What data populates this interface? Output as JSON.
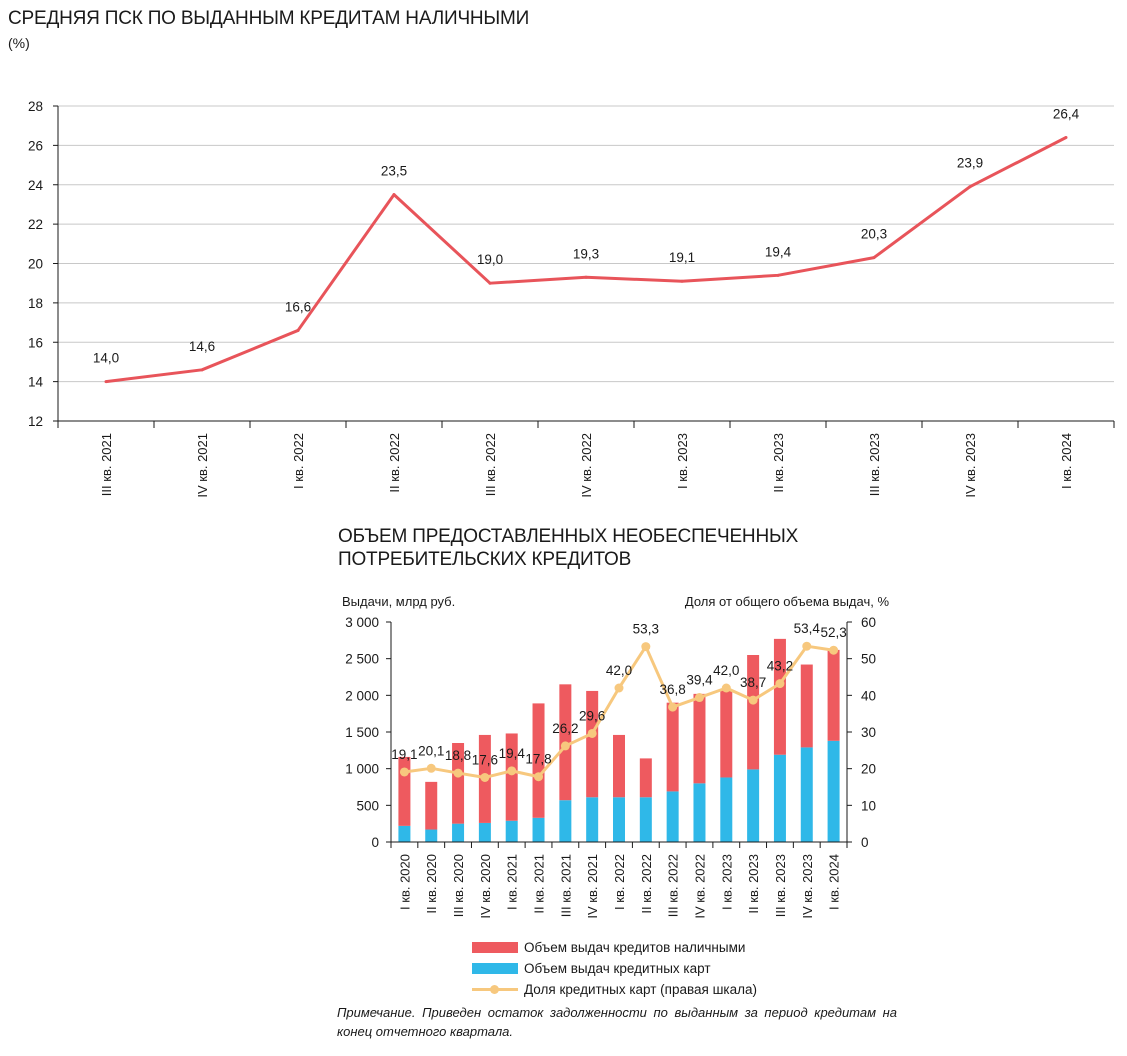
{
  "chart_data": [
    {
      "type": "line",
      "title": "СРЕДНЯЯ ПСК ПО ВЫДАННЫМ КРЕДИТАМ НАЛИЧНЫМИ",
      "unit": "(%)",
      "categories": [
        "III кв. 2021",
        "IV кв. 2021",
        "I кв. 2022",
        "II кв. 2022",
        "III кв. 2022",
        "IV кв. 2022",
        "I кв. 2023",
        "II кв. 2023",
        "III кв. 2023",
        "IV кв. 2023",
        "I кв. 2024"
      ],
      "values": [
        14.0,
        14.6,
        16.6,
        23.5,
        19.0,
        19.3,
        19.1,
        19.4,
        20.3,
        23.9,
        26.4
      ],
      "data_labels": [
        "14,0",
        "14,6",
        "16,6",
        "23,5",
        "19,0",
        "19,3",
        "19,1",
        "19,4",
        "20,3",
        "23,9",
        "26,4"
      ],
      "ylim": [
        12,
        28
      ],
      "yticks": [
        "12",
        "14",
        "16",
        "18",
        "20",
        "22",
        "24",
        "26",
        "28"
      ],
      "color": "#e8545a",
      "grid": true
    },
    {
      "type": "bar",
      "title_lines": [
        "ОБЪЕМ ПРЕДОСТАВЛЕННЫХ НЕОБЕСПЕЧЕННЫХ",
        "ПОТРЕБИТЕЛЬСКИХ КРЕДИТОВ"
      ],
      "left_axis_label": "Выдачи, млрд руб.",
      "right_axis_label": "Доля от общего объема выдач, %",
      "categories": [
        "I кв. 2020",
        "II кв. 2020",
        "III кв. 2020",
        "IV кв. 2020",
        "I кв. 2021",
        "II кв. 2021",
        "III кв. 2021",
        "IV кв. 2021",
        "I кв. 2022",
        "II кв. 2022",
        "III кв. 2022",
        "IV кв. 2022",
        "I кв. 2023",
        "II кв. 2023",
        "III кв. 2023",
        "IV кв. 2023",
        "I кв. 2024"
      ],
      "series": [
        {
          "name": "Объем выдач кредитов наличными",
          "color": "#ee5a5f",
          "stacked": true,
          "values": [
            940,
            650,
            1100,
            1200,
            1190,
            1560,
            1580,
            1450,
            850,
            530,
            1210,
            1220,
            1190,
            1560,
            1580,
            1130,
            1240
          ]
        },
        {
          "name": "Объем выдач кредитных карт",
          "color": "#2fb8e8",
          "stacked": true,
          "values": [
            220,
            170,
            250,
            260,
            290,
            330,
            570,
            610,
            610,
            610,
            690,
            800,
            880,
            990,
            1190,
            1290,
            1380
          ]
        },
        {
          "name": "Доля кредитных карт (правая шкала)",
          "color": "#f7c87e",
          "axis": "right",
          "values": [
            19.1,
            20.1,
            18.8,
            17.6,
            19.4,
            17.8,
            26.2,
            29.6,
            42.0,
            53.3,
            36.8,
            39.4,
            42.0,
            38.7,
            43.2,
            53.4,
            52.3
          ],
          "data_labels": [
            "19,1",
            "20,1",
            "18,8",
            "17,6",
            "19,4",
            "17,8",
            "26,2",
            "29,6",
            "42,0",
            "53,3",
            "36,8",
            "39,4",
            "42,0",
            "38,7",
            "43,2",
            "53,4",
            "52,3"
          ]
        }
      ],
      "ylim_left": [
        0,
        3000
      ],
      "yticks_left": [
        "0",
        "500",
        "1 000",
        "1 500",
        "2 000",
        "2 500",
        "3 000"
      ],
      "ylim_right": [
        0,
        60
      ],
      "yticks_right": [
        "0",
        "10",
        "20",
        "30",
        "40",
        "50",
        "60"
      ],
      "legend_position": "bottom"
    }
  ],
  "note": "Примечание. Приведен остаток задолженности по выданным за период кредитам на конец отчетного квартала."
}
